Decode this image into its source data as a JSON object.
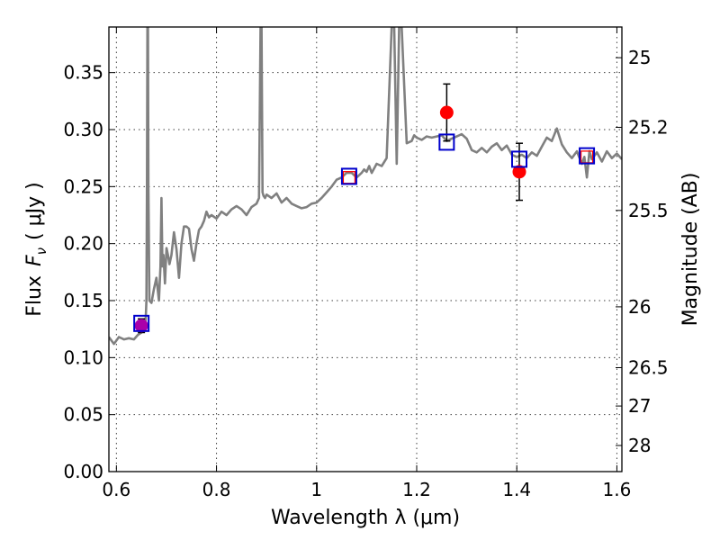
{
  "chart_data": {
    "type": "line",
    "xlabel": "Wavelength  λ (μm)",
    "ylabel": "Flux  F_ν  ( μJy )",
    "ylabel_parts": {
      "prefix": "Flux",
      "symbol": "F",
      "subscript": "ν",
      "unit": "( μJy )"
    },
    "y2label": "Magnitude (AB)",
    "xlim": [
      0.585,
      1.61
    ],
    "ylim": [
      0.0,
      0.39
    ],
    "x_ticks": [
      0.6,
      0.8,
      1.0,
      1.2,
      1.4,
      1.6
    ],
    "x_tick_labels": [
      "0.6",
      "0.8",
      "1",
      "1.2",
      "1.4",
      "1.6"
    ],
    "y_ticks": [
      0.0,
      0.05,
      0.1,
      0.15,
      0.2,
      0.25,
      0.3,
      0.35
    ],
    "y_tick_labels": [
      "0.00",
      "0.05",
      "0.10",
      "0.15",
      "0.20",
      "0.25",
      "0.30",
      "0.35"
    ],
    "y2_ticks": [
      25,
      25.2,
      25.5,
      26,
      26.5,
      27,
      28
    ],
    "y2_tick_labels": [
      "25",
      "25.2",
      "25.5",
      "26",
      "26.5",
      "27",
      "28"
    ],
    "grid": true,
    "colors": {
      "model": "#808080",
      "observed": "#ff0000",
      "model_box": "#0000cc",
      "magenta_point": "#aa00aa",
      "error": "#000000"
    },
    "series": [
      {
        "type": "line",
        "color": "#808080",
        "x": [
          0.585,
          0.595,
          0.605,
          0.615,
          0.625,
          0.635,
          0.643,
          0.65,
          0.655,
          0.658,
          0.66,
          0.661,
          0.662,
          0.663,
          0.664,
          0.666,
          0.67,
          0.675,
          0.68,
          0.685,
          0.688,
          0.69,
          0.692,
          0.694,
          0.697,
          0.7,
          0.703,
          0.706,
          0.71,
          0.715,
          0.72,
          0.725,
          0.73,
          0.735,
          0.74,
          0.745,
          0.75,
          0.755,
          0.76,
          0.765,
          0.77,
          0.775,
          0.78,
          0.785,
          0.79,
          0.8,
          0.81,
          0.82,
          0.83,
          0.84,
          0.85,
          0.86,
          0.87,
          0.88,
          0.885,
          0.888,
          0.89,
          0.892,
          0.894,
          0.897,
          0.9,
          0.91,
          0.92,
          0.93,
          0.94,
          0.95,
          0.96,
          0.97,
          0.98,
          0.99,
          1.0,
          1.01,
          1.02,
          1.03,
          1.04,
          1.05,
          1.06,
          1.07,
          1.08,
          1.09,
          1.095,
          1.1,
          1.105,
          1.11,
          1.12,
          1.13,
          1.14,
          1.15,
          1.155,
          1.16,
          1.165,
          1.17,
          1.18,
          1.19,
          1.195,
          1.2,
          1.21,
          1.22,
          1.23,
          1.24,
          1.25,
          1.26,
          1.27,
          1.28,
          1.29,
          1.3,
          1.31,
          1.32,
          1.33,
          1.34,
          1.35,
          1.36,
          1.37,
          1.38,
          1.39,
          1.4,
          1.41,
          1.42,
          1.43,
          1.44,
          1.45,
          1.46,
          1.47,
          1.48,
          1.49,
          1.5,
          1.51,
          1.52,
          1.53,
          1.535,
          1.54,
          1.545,
          1.55,
          1.56,
          1.57,
          1.58,
          1.59,
          1.6,
          1.61
        ],
        "y": [
          0.118,
          0.112,
          0.118,
          0.116,
          0.117,
          0.116,
          0.12,
          0.122,
          0.124,
          0.128,
          0.15,
          0.25,
          0.39,
          0.39,
          0.25,
          0.15,
          0.148,
          0.16,
          0.17,
          0.15,
          0.18,
          0.24,
          0.18,
          0.19,
          0.165,
          0.196,
          0.19,
          0.182,
          0.19,
          0.21,
          0.195,
          0.17,
          0.2,
          0.215,
          0.215,
          0.213,
          0.195,
          0.185,
          0.2,
          0.212,
          0.215,
          0.22,
          0.228,
          0.223,
          0.225,
          0.222,
          0.228,
          0.225,
          0.23,
          0.233,
          0.23,
          0.225,
          0.232,
          0.235,
          0.24,
          0.39,
          0.39,
          0.245,
          0.242,
          0.24,
          0.243,
          0.24,
          0.244,
          0.236,
          0.24,
          0.235,
          0.233,
          0.231,
          0.232,
          0.235,
          0.236,
          0.24,
          0.245,
          0.25,
          0.256,
          0.258,
          0.262,
          0.262,
          0.258,
          0.262,
          0.265,
          0.263,
          0.268,
          0.262,
          0.27,
          0.268,
          0.275,
          0.39,
          0.39,
          0.27,
          0.39,
          0.39,
          0.288,
          0.29,
          0.295,
          0.293,
          0.291,
          0.294,
          0.293,
          0.294,
          0.295,
          0.29,
          0.292,
          0.294,
          0.296,
          0.292,
          0.282,
          0.28,
          0.284,
          0.28,
          0.285,
          0.288,
          0.282,
          0.286,
          0.278,
          0.276,
          0.278,
          0.275,
          0.28,
          0.277,
          0.285,
          0.293,
          0.29,
          0.301,
          0.287,
          0.28,
          0.275,
          0.281,
          0.27,
          0.276,
          0.258,
          0.281,
          0.274,
          0.28,
          0.272,
          0.281,
          0.275,
          0.279,
          0.274
        ]
      }
    ],
    "model_photometry": [
      {
        "x": 0.65,
        "y": 0.13
      },
      {
        "x": 1.065,
        "y": 0.259
      },
      {
        "x": 1.26,
        "y": 0.289
      },
      {
        "x": 1.405,
        "y": 0.274
      },
      {
        "x": 1.54,
        "y": 0.277
      }
    ],
    "observed_photometry": [
      {
        "x": 0.65,
        "y": 0.128,
        "err": 0.006,
        "color": "#aa00aa"
      },
      {
        "x": 1.065,
        "y": 0.258,
        "err": 0.0,
        "color": "#ff0000"
      },
      {
        "x": 1.26,
        "y": 0.315,
        "err": 0.025,
        "color": "#ff0000"
      },
      {
        "x": 1.405,
        "y": 0.263,
        "err": 0.025,
        "color": "#ff0000"
      },
      {
        "x": 1.54,
        "y": 0.276,
        "err": 0.0,
        "color": "#ff0000"
      }
    ]
  }
}
